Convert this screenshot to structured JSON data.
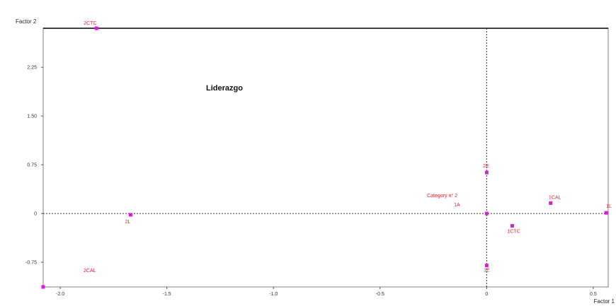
{
  "chart_data": {
    "type": "scatter",
    "title": "",
    "xlabel": "Factor 1",
    "ylabel": "Factor 2",
    "annotation": "Liderazgo",
    "xlim": [
      -2.08,
      0.57
    ],
    "ylim": [
      -1.13,
      2.85
    ],
    "x_ticks": [
      {
        "value": -2.0,
        "label": "-2.0"
      },
      {
        "value": -1.5,
        "label": "-1.5"
      },
      {
        "value": -1.0,
        "label": "-1.0"
      },
      {
        "value": -0.5,
        "label": "-0.5"
      },
      {
        "value": 0,
        "label": "0"
      },
      {
        "value": 0.5,
        "label": "0.5"
      }
    ],
    "y_ticks": [
      {
        "value": 2.25,
        "label": "2.25"
      },
      {
        "value": 1.5,
        "label": "1.50"
      },
      {
        "value": 0.75,
        "label": "0.75"
      },
      {
        "value": 0,
        "label": "0"
      },
      {
        "value": -0.75,
        "label": "-0.75"
      }
    ],
    "points": [
      {
        "label": "2CTC",
        "x": -1.83,
        "y": 2.85
      },
      {
        "label": "2L",
        "x": -1.67,
        "y": -0.02
      },
      {
        "label": "2CAL",
        "x": -2.08,
        "y": -1.13
      },
      {
        "label": "2E",
        "x": 0.0,
        "y": 0.63
      },
      {
        "label": "1A",
        "x": 0.0,
        "y": 0.0
      },
      {
        "label": "1E",
        "x": 0.0,
        "y": -0.8
      },
      {
        "label": "1CTC",
        "x": 0.12,
        "y": -0.19
      },
      {
        "label": "1CAL",
        "x": 0.3,
        "y": 0.16
      },
      {
        "label": "1L",
        "x": 0.56,
        "y": 0.01
      }
    ],
    "extra_labels": [
      "Category n° 2"
    ],
    "zero_lines": true,
    "grid": false,
    "colors": {
      "marker": "#e019e0",
      "label": "#e8202a",
      "frame": "#808080"
    }
  }
}
